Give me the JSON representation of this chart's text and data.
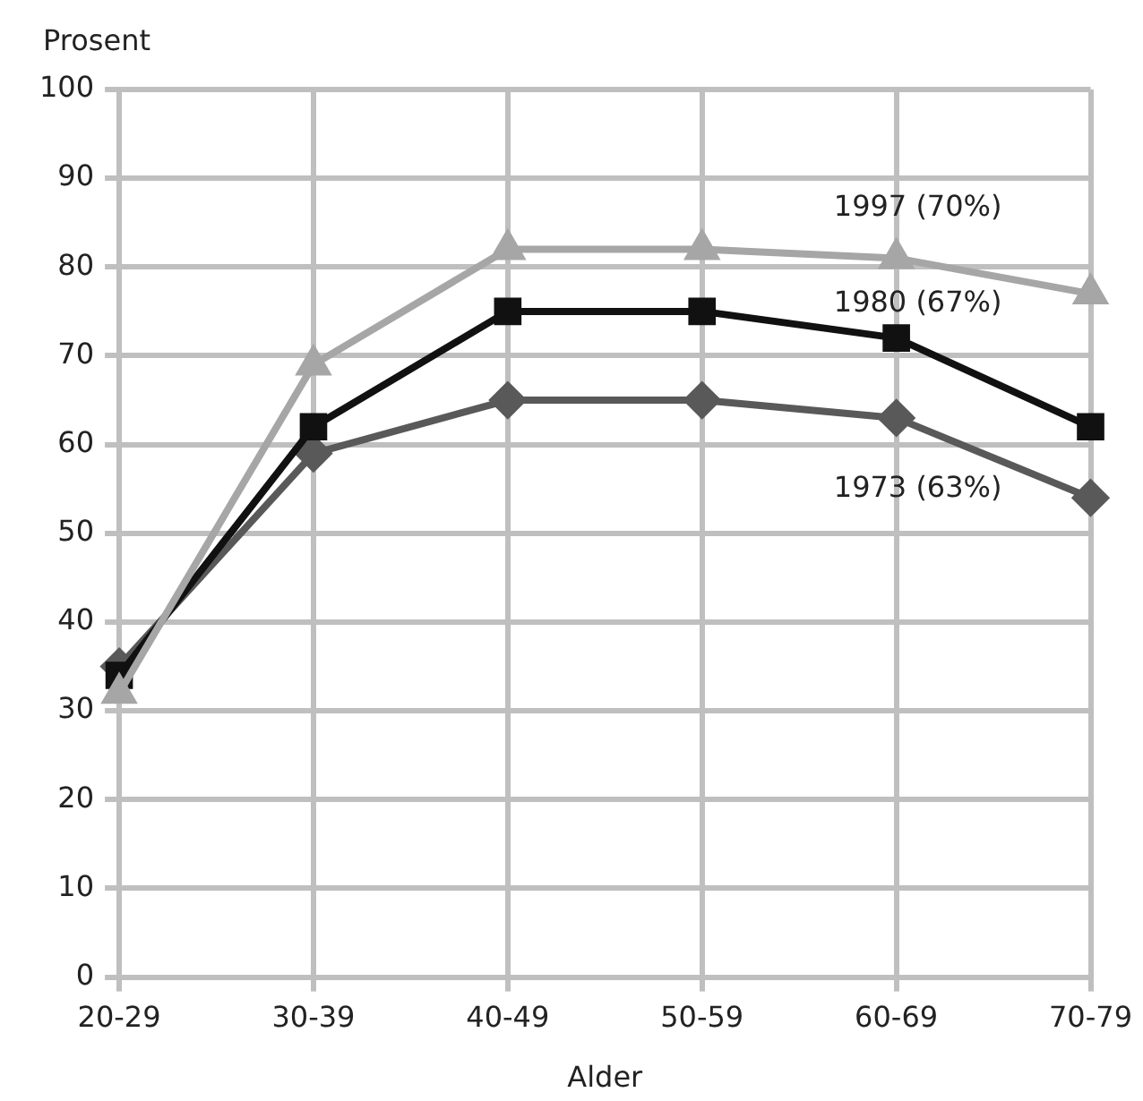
{
  "chart_data": {
    "type": "line",
    "xlabel": "Alder",
    "ylabel": "Prosent",
    "categories": [
      "20-29",
      "30-39",
      "40-49",
      "50-59",
      "60-69",
      "70-79"
    ],
    "ylim": [
      0,
      100
    ],
    "yticks": [
      0,
      10,
      20,
      30,
      40,
      50,
      60,
      70,
      80,
      90,
      100
    ],
    "grid": true,
    "legend": false,
    "series": [
      {
        "name": "1997 (70%)",
        "color": "#a6a6a6",
        "marker": "triangle",
        "values": [
          32,
          69,
          82,
          82,
          81,
          77
        ]
      },
      {
        "name": "1980 (67%)",
        "color": "#111111",
        "marker": "square",
        "values": [
          34,
          62,
          75,
          75,
          72,
          62
        ]
      },
      {
        "name": "1973 (63%)",
        "color": "#595959",
        "marker": "diamond",
        "values": [
          35,
          59,
          65,
          65,
          63,
          54
        ]
      }
    ]
  }
}
